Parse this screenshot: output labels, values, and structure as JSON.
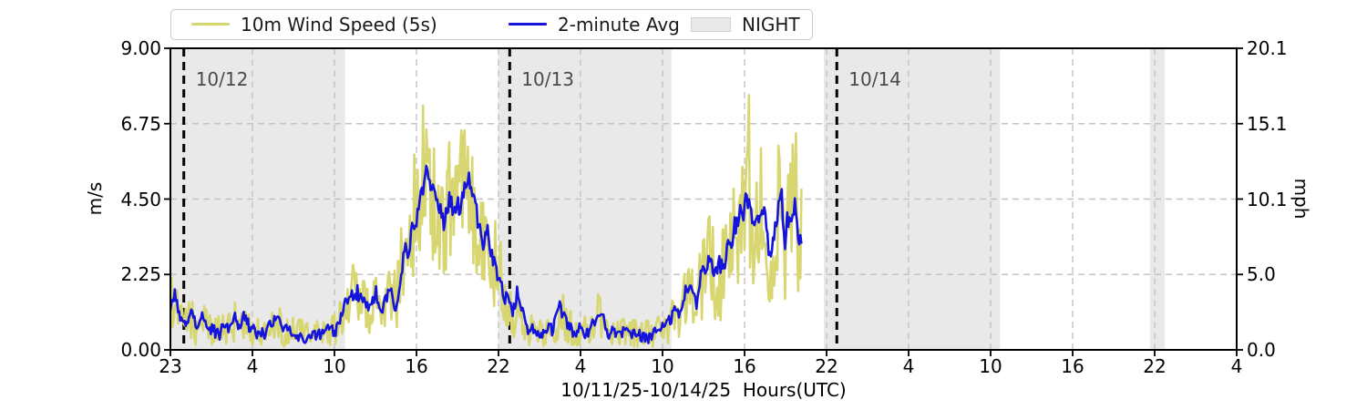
{
  "figure": {
    "background": "#ffffff",
    "xlabel": "10/11/25-10/14/25  Hours(UTC)",
    "ylabel_left": "m/s",
    "ylabel_right": "mph"
  },
  "legend": {
    "items": [
      {
        "label": "10m Wind Speed (5s)",
        "swatch": "line",
        "color": "#d8d671"
      },
      {
        "label": "2-minute Avg",
        "swatch": "line",
        "color": "#1414dd"
      },
      {
        "label": "NIGHT",
        "swatch": "patch",
        "color": "#e9e9e9"
      }
    ]
  },
  "chart_data": {
    "type": "line",
    "title": "",
    "xlabel": "10/11/25-10/14/25  Hours(UTC)",
    "ylabel_left": "m/s",
    "ylabel_right": "mph",
    "grid": true,
    "legend_position": "top",
    "x_axis": {
      "unit": "Hours (UTC)",
      "start": "10/11/25 23:00 UTC",
      "range_hours": [
        0,
        78
      ],
      "tick_hours_from_start": [
        0,
        6,
        12,
        18,
        24,
        30,
        36,
        42,
        48,
        54,
        60,
        66,
        72,
        78
      ],
      "tick_labels": [
        "23",
        "4",
        "10",
        "16",
        "22",
        "4",
        "10",
        "16",
        "22",
        "4",
        "10",
        "16",
        "22",
        "4"
      ]
    },
    "y_axis_left": {
      "unit": "m/s",
      "range": [
        0,
        9
      ],
      "ticks": [
        0,
        2.25,
        4.5,
        6.75,
        9
      ],
      "tick_labels": [
        "0.00",
        "2.25",
        "4.50",
        "6.75",
        "9.00"
      ]
    },
    "y_axis_right": {
      "unit": "mph",
      "tick_labels": [
        "0.0",
        "5.0",
        "10.1",
        "15.1",
        "20.1"
      ]
    },
    "night_label": "NIGHT",
    "night_color": "#e9e9e9",
    "night_bands_hours_from_start": [
      [
        0,
        12.77
      ],
      [
        23.98,
        36.65
      ],
      [
        47.8,
        60.69
      ],
      [
        71.65,
        72.75
      ]
    ],
    "day_boundaries": [
      {
        "hours_from_start": 0.98,
        "label": "10/12"
      },
      {
        "hours_from_start": 24.82,
        "label": "10/13"
      },
      {
        "hours_from_start": 48.75,
        "label": "10/14"
      }
    ],
    "series": [
      {
        "name": "10m Wind Speed (5s)",
        "color": "#d8d671",
        "style": "raw-5s-envelope",
        "t_hours": [
          0,
          0.3,
          0.7,
          1,
          1.5,
          2,
          2.3,
          3,
          4,
          4.7,
          5,
          5.5,
          6,
          7,
          7.8,
          8.2,
          9,
          10,
          11,
          12,
          12.5,
          13,
          13.5,
          14,
          14.5,
          15,
          15.5,
          16,
          16.5,
          17,
          17.5,
          18,
          18.4,
          18.7,
          19,
          19.5,
          20,
          20.5,
          21,
          21.4,
          21.8,
          22.2,
          22.6,
          23,
          23.5,
          24,
          24.5,
          25,
          25.4,
          25.7,
          26,
          26.5,
          27,
          28,
          28.5,
          29,
          29.5,
          30,
          30.5,
          31,
          31.5,
          32,
          33,
          34,
          35,
          36,
          36.5,
          37,
          37.5,
          38,
          38.5,
          39,
          39.5,
          40,
          40.5,
          41,
          41.5,
          42,
          42.3,
          42.6,
          43,
          43.3,
          43.7,
          44,
          44.3,
          44.7,
          45,
          45.3,
          45.7,
          46,
          46.2
        ],
        "gust": [
          2.2,
          2.3,
          1.5,
          1.2,
          1.6,
          1.1,
          1.5,
          1.0,
          1.1,
          1.5,
          1.1,
          1.4,
          1.0,
          1.1,
          1.5,
          1.1,
          1.0,
          0.9,
          1.0,
          1.2,
          1.7,
          2.2,
          2.8,
          2.4,
          2.0,
          2.4,
          2.1,
          2.7,
          2.4,
          4.2,
          5.0,
          6.5,
          7.3,
          8.1,
          6.8,
          6.4,
          6.0,
          6.5,
          6.2,
          7.0,
          7.4,
          6.3,
          5.6,
          5.0,
          4.4,
          3.6,
          2.8,
          1.9,
          2.5,
          1.7,
          1.4,
          1.0,
          0.9,
          1.3,
          1.9,
          1.5,
          1.0,
          1.3,
          0.9,
          1.5,
          1.9,
          1.0,
          1.1,
          1.0,
          0.9,
          1.1,
          1.5,
          1.8,
          2.2,
          3.0,
          2.5,
          3.6,
          4.2,
          3.1,
          3.9,
          5.0,
          5.6,
          6.2,
          8.0,
          6.2,
          5.5,
          6.6,
          5.3,
          4.8,
          6.0,
          6.7,
          5.2,
          6.3,
          7.0,
          5.5,
          6.2
        ],
        "lull": [
          0.3,
          0.6,
          0.2,
          0.1,
          0.2,
          0.05,
          0.15,
          0.05,
          0.05,
          0.2,
          0.05,
          0.15,
          0.05,
          0.05,
          0.2,
          0.05,
          0.05,
          0.05,
          0.05,
          0.1,
          0.3,
          0.5,
          0.8,
          0.6,
          0.4,
          0.6,
          0.4,
          0.7,
          0.5,
          1.2,
          1.6,
          2.4,
          3.0,
          3.2,
          2.6,
          2.3,
          2.1,
          2.4,
          2.2,
          2.8,
          3.1,
          2.3,
          1.9,
          1.6,
          1.3,
          0.9,
          0.5,
          0.2,
          0.5,
          0.2,
          0.1,
          0.05,
          0.05,
          0.1,
          0.3,
          0.2,
          0.05,
          0.1,
          0.05,
          0.2,
          0.3,
          0.05,
          0.05,
          0.05,
          0.05,
          0.05,
          0.15,
          0.25,
          0.4,
          0.7,
          0.4,
          0.9,
          1.2,
          0.6,
          0.9,
          1.4,
          1.8,
          2.0,
          2.4,
          1.8,
          1.5,
          2.0,
          1.4,
          1.1,
          1.7,
          2.1,
          1.2,
          1.8,
          2.2,
          1.3,
          1.5
        ]
      },
      {
        "name": "2-minute Avg",
        "color": "#1414dd",
        "style": "average",
        "t_hours": [
          0,
          0.3,
          0.7,
          1,
          1.5,
          2,
          2.3,
          3,
          4,
          4.7,
          5,
          5.5,
          6,
          7,
          7.8,
          8.2,
          9,
          10,
          11,
          12,
          12.5,
          13,
          13.5,
          14,
          14.5,
          15,
          15.5,
          16,
          16.5,
          17,
          17.5,
          18,
          18.4,
          18.7,
          19,
          19.5,
          20,
          20.5,
          21,
          21.4,
          21.8,
          22.2,
          22.6,
          23,
          23.5,
          24,
          24.5,
          25,
          25.4,
          25.7,
          26,
          26.5,
          27,
          28,
          28.5,
          29,
          29.5,
          30,
          30.5,
          31,
          31.5,
          32,
          33,
          34,
          35,
          36,
          36.5,
          37,
          37.5,
          38,
          38.5,
          39,
          39.5,
          40,
          40.5,
          41,
          41.5,
          42,
          42.3,
          42.6,
          43,
          43.3,
          43.7,
          44,
          44.3,
          44.7,
          45,
          45.3,
          45.7,
          46,
          46.2
        ],
        "avg": [
          1.2,
          1.9,
          1.0,
          0.7,
          1.1,
          0.6,
          1.0,
          0.5,
          0.6,
          1.0,
          0.6,
          0.9,
          0.5,
          0.6,
          1.0,
          0.6,
          0.5,
          0.4,
          0.5,
          0.6,
          1.0,
          1.4,
          1.8,
          1.5,
          1.2,
          1.5,
          1.2,
          1.7,
          1.4,
          2.6,
          3.2,
          4.3,
          5.0,
          5.4,
          4.6,
          4.2,
          3.9,
          4.3,
          4.1,
          4.8,
          5.2,
          4.2,
          3.7,
          3.3,
          2.9,
          2.3,
          1.7,
          1.1,
          1.7,
          1.0,
          0.8,
          0.5,
          0.4,
          0.7,
          1.2,
          0.9,
          0.5,
          0.7,
          0.4,
          0.9,
          1.2,
          0.5,
          0.6,
          0.5,
          0.4,
          0.6,
          0.9,
          1.1,
          1.4,
          1.9,
          1.5,
          2.4,
          2.9,
          2.0,
          2.6,
          3.3,
          3.8,
          4.2,
          4.7,
          4.0,
          3.6,
          4.3,
          3.4,
          3.0,
          3.9,
          4.4,
          3.3,
          4.1,
          4.6,
          3.5,
          3.8
        ]
      }
    ]
  }
}
